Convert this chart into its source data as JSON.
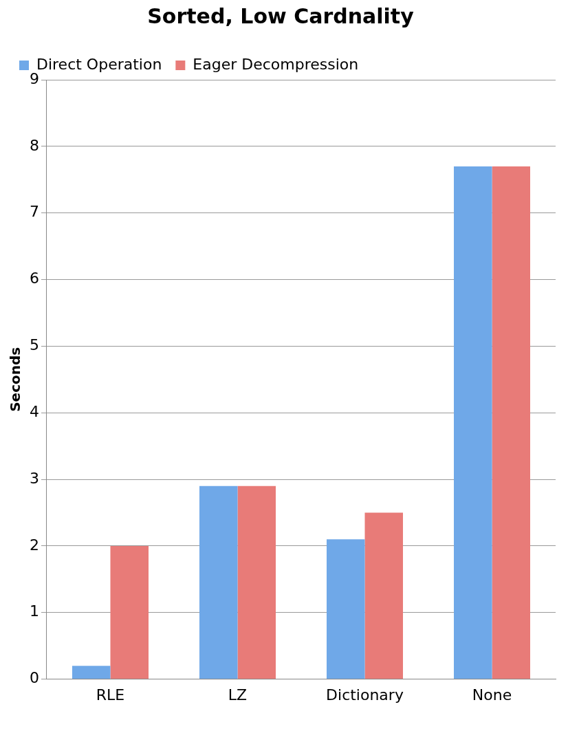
{
  "chart_data": {
    "type": "bar",
    "title": "Sorted, Low Cardnality",
    "ylabel": "Seconds",
    "categories": [
      "RLE",
      "LZ",
      "Dictionary",
      "None"
    ],
    "series": [
      {
        "name": "Direct Operation",
        "color": "#6fa8e8",
        "values": [
          0.2,
          2.9,
          2.1,
          7.7
        ]
      },
      {
        "name": "Eager Decompression",
        "color": "#e87b78",
        "values": [
          2.0,
          2.9,
          2.5,
          7.7
        ]
      }
    ],
    "ylim": [
      0,
      9
    ],
    "yticks": [
      0,
      1,
      2,
      3,
      4,
      5,
      6,
      7,
      8,
      9
    ],
    "grid": "y",
    "legend": "top left"
  }
}
